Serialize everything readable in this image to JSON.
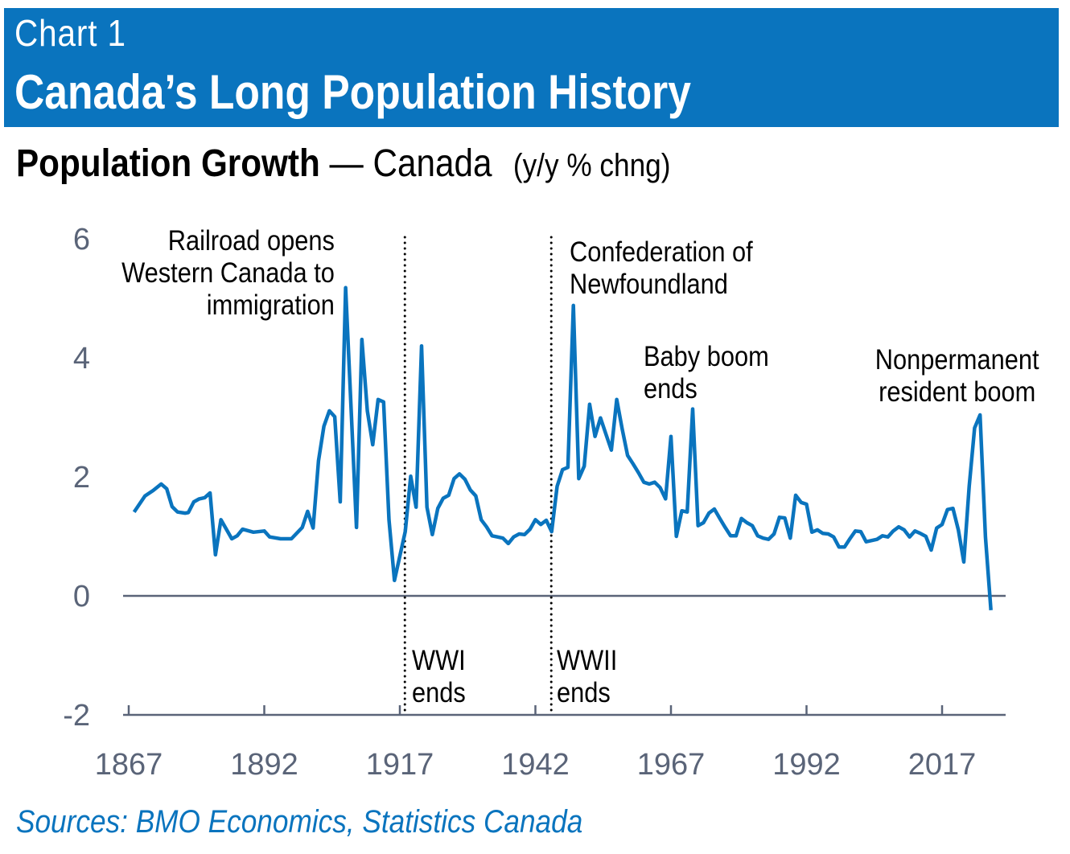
{
  "header": {
    "chart_number": "Chart 1",
    "title": "Canada’s Long Population History"
  },
  "subtitle": {
    "bold": "Population Growth",
    "dash": " — ",
    "region": "Canada",
    "units": "(y/y % chng)"
  },
  "source": "Sources: BMO Economics, Statistics Canada",
  "colors": {
    "banner": "#0a74be",
    "line": "#0a74be",
    "axis": "#5a6478",
    "source": "#0a74be"
  },
  "chart_data": {
    "type": "line",
    "title": "Population Growth — Canada",
    "ylabel": "(y/y % chng)",
    "ylim": [
      -2,
      6
    ],
    "yticks": [
      "6",
      "4",
      "2",
      "0",
      "-2"
    ],
    "ytick_values": [
      6,
      4,
      2,
      0,
      -2
    ],
    "xticks": [
      "1867",
      "1892",
      "1917",
      "1942",
      "1967",
      "1992",
      "2017"
    ],
    "xtick_values": [
      1867,
      1892,
      1917,
      1942,
      1967,
      1992,
      2017
    ],
    "grid": false,
    "vlines": [
      {
        "year": 1918,
        "label": [
          "WWI",
          "ends"
        ]
      },
      {
        "year": 1945,
        "label": [
          "WWII",
          "ends"
        ]
      }
    ],
    "annotations": [
      {
        "id": "railroad",
        "lines": [
          "Railroad opens",
          "Western Canada to",
          "immigration"
        ]
      },
      {
        "id": "newfoundland",
        "lines": [
          "Confederation of",
          "Newfoundland"
        ]
      },
      {
        "id": "babyboom",
        "lines": [
          "Baby boom",
          "ends"
        ]
      },
      {
        "id": "nonpermanent",
        "lines": [
          "Nonpermanent",
          "resident boom"
        ]
      }
    ],
    "series": [
      {
        "name": "Canada population growth",
        "x": [
          1868,
          1870,
          1871.5,
          1873,
          1874,
          1875,
          1876,
          1877.4,
          1878,
          1879,
          1880,
          1881,
          1882,
          1883,
          1884,
          1886,
          1887,
          1888,
          1890,
          1892,
          1893,
          1895,
          1897,
          1899,
          1900,
          1901,
          1902,
          1903,
          1904,
          1905,
          1906,
          1907,
          1909,
          1910,
          1911,
          1912,
          1913,
          1914,
          1915,
          1916,
          1918,
          1919,
          1920,
          1921,
          1922,
          1923,
          1924,
          1925,
          1926,
          1927,
          1928,
          1929,
          1930,
          1931,
          1932,
          1933,
          1934,
          1935,
          1936,
          1937,
          1938,
          1939,
          1940,
          1941,
          1942,
          1943,
          1944,
          1945,
          1946,
          1947,
          1948,
          1949,
          1950,
          1951,
          1952,
          1953,
          1954,
          1955,
          1956,
          1957,
          1958,
          1959,
          1960,
          1961,
          1962,
          1963,
          1964,
          1965,
          1966,
          1967,
          1968,
          1969,
          1970,
          1971,
          1972,
          1973,
          1974,
          1975,
          1976,
          1977,
          1978,
          1979,
          1980,
          1981,
          1982,
          1983,
          1984,
          1985,
          1986,
          1987,
          1988,
          1989,
          1990,
          1991,
          1992,
          1993,
          1994,
          1995,
          1996,
          1997,
          1998,
          1999,
          2000,
          2001,
          2002,
          2003,
          2004,
          2005,
          2006,
          2007,
          2008,
          2009,
          2010,
          2011,
          2012,
          2013,
          2014,
          2015,
          2016,
          2017,
          2018,
          2019,
          2020,
          2021,
          2022,
          2023,
          2024,
          2025,
          2026
        ],
        "y": [
          1.41,
          1.68,
          1.77,
          1.88,
          1.8,
          1.5,
          1.41,
          1.39,
          1.4,
          1.58,
          1.63,
          1.65,
          1.73,
          0.69,
          1.28,
          0.96,
          1.01,
          1.12,
          1.07,
          1.09,
          0.99,
          0.96,
          0.96,
          1.15,
          1.42,
          1.14,
          2.27,
          2.85,
          3.11,
          3.01,
          1.58,
          5.18,
          1.15,
          4.31,
          3.11,
          2.54,
          3.3,
          3.26,
          1.28,
          0.26,
          1.08,
          2.01,
          1.49,
          4.2,
          1.49,
          1.03,
          1.47,
          1.64,
          1.69,
          1.97,
          2.05,
          1.96,
          1.78,
          1.68,
          1.28,
          1.16,
          1.01,
          0.99,
          0.97,
          0.88,
          0.99,
          1.04,
          1.03,
          1.12,
          1.28,
          1.2,
          1.27,
          1.08,
          1.84,
          2.12,
          2.16,
          4.88,
          1.97,
          2.18,
          3.22,
          2.68,
          2.99,
          2.72,
          2.45,
          3.3,
          2.81,
          2.36,
          2.22,
          2.07,
          1.91,
          1.88,
          1.91,
          1.82,
          1.63,
          2.68,
          1.0,
          1.43,
          1.41,
          3.14,
          1.18,
          1.23,
          1.39,
          1.46,
          1.3,
          1.15,
          1.01,
          1.01,
          1.3,
          1.23,
          1.18,
          1.01,
          0.97,
          0.95,
          1.04,
          1.32,
          1.31,
          0.97,
          1.69,
          1.57,
          1.54,
          1.07,
          1.11,
          1.05,
          1.04,
          0.99,
          0.82,
          0.82,
          0.96,
          1.09,
          1.08,
          0.91,
          0.93,
          0.95,
          1.01,
          0.99,
          1.09,
          1.16,
          1.11,
          0.99,
          1.09,
          1.05,
          1.0,
          0.77,
          1.14,
          1.2,
          1.45,
          1.47,
          1.11,
          0.57,
          1.84,
          2.82,
          3.04,
          0.99,
          -0.24
        ]
      }
    ]
  }
}
